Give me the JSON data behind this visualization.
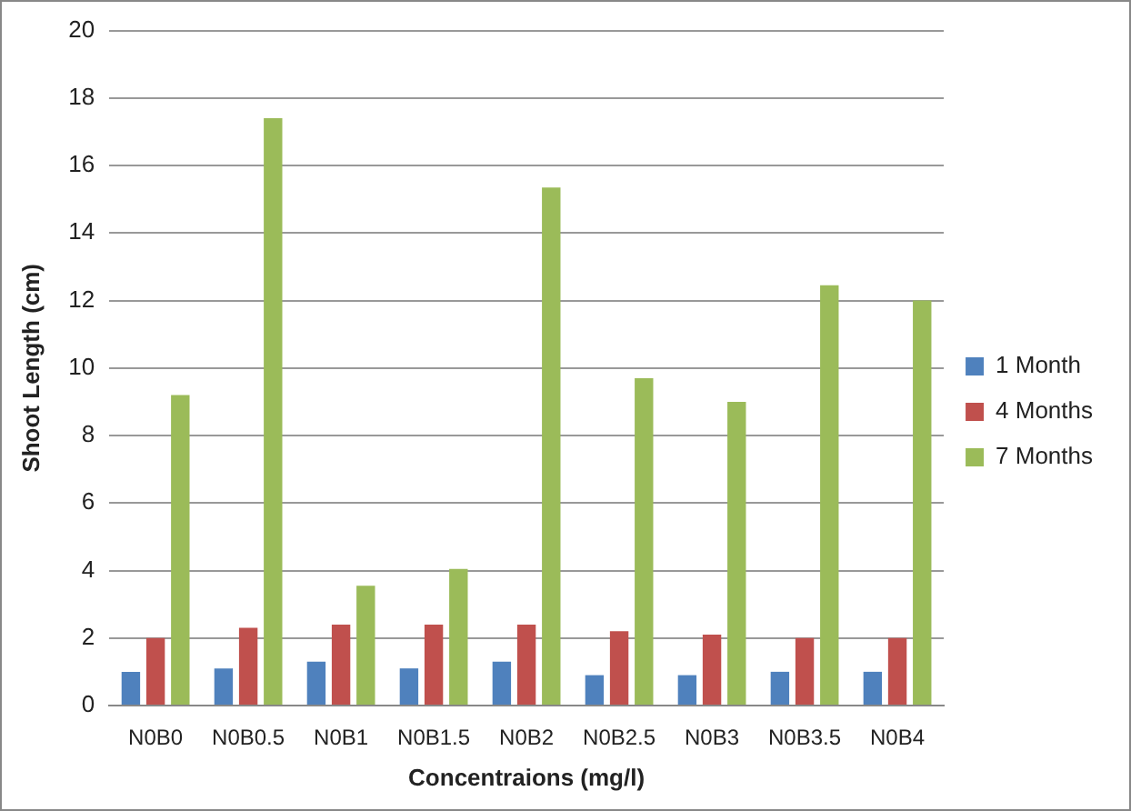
{
  "chart_data": {
    "type": "bar",
    "xlabel": "Concentraions (mg/l)",
    "ylabel": "Shoot Length (cm)",
    "categories": [
      "N0B0",
      "N0B0.5",
      "N0B1",
      "N0B1.5",
      "N0B2",
      "N0B2.5",
      "N0B3",
      "N0B3.5",
      "N0B4"
    ],
    "series": [
      {
        "name": "1 Month",
        "color": "#4f81bd",
        "values": [
          1.0,
          1.1,
          1.3,
          1.1,
          1.3,
          0.9,
          0.9,
          1.0,
          1.0
        ]
      },
      {
        "name": "4 Months",
        "color": "#c0504d",
        "values": [
          2.0,
          2.3,
          2.4,
          2.4,
          2.4,
          2.2,
          2.1,
          2.0,
          2.0
        ]
      },
      {
        "name": "7 Months",
        "color": "#9bbb59",
        "values": [
          9.2,
          17.4,
          3.55,
          4.05,
          15.35,
          9.7,
          9.0,
          12.45,
          12.0
        ]
      }
    ],
    "ylim": [
      0,
      20
    ],
    "yticks": [
      0,
      2,
      4,
      6,
      8,
      10,
      12,
      14,
      16,
      18,
      20
    ],
    "grid": "y",
    "legend": "right"
  }
}
